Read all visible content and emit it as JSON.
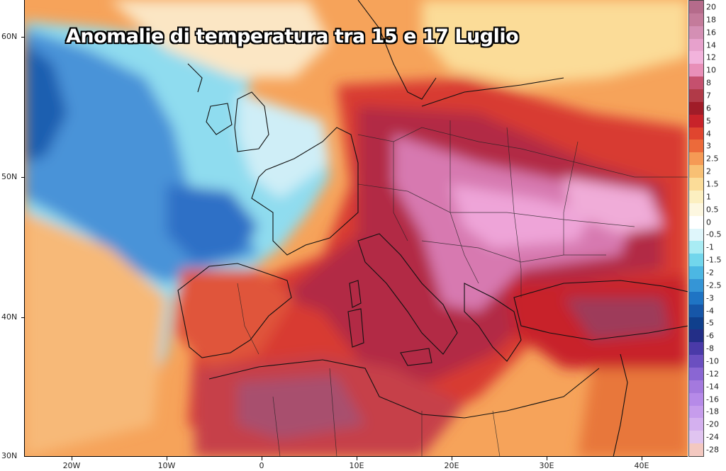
{
  "title": "Anomalie di temperatura tra 15 e 17 Luglio",
  "y_axis_labels": [
    "60N",
    "50N",
    "40N",
    "30N"
  ],
  "x_axis_labels": [
    "20W",
    "10W",
    "0",
    "10E",
    "20E",
    "30E",
    "40E"
  ],
  "legend": {
    "labels": [
      "20",
      "18",
      "16",
      "14",
      "12",
      "10",
      "8",
      "7",
      "6",
      "5",
      "4",
      "3",
      "2.5",
      "2",
      "1.5",
      "1",
      "0.5",
      "0",
      "-0.5",
      "-1",
      "-1.5",
      "-2",
      "-2.5",
      "-3",
      "-4",
      "-5",
      "-6",
      "-8",
      "-10",
      "-12",
      "-14",
      "-16",
      "-18",
      "-20",
      "-24",
      "-28"
    ],
    "colors": [
      "#b56b8b",
      "#c47b9b",
      "#d48fb4",
      "#e7a1cc",
      "#f2b3dc",
      "#e88fb8",
      "#c5506e",
      "#b13a48",
      "#a01c28",
      "#c8232a",
      "#e0452f",
      "#ec6a3a",
      "#f59a55",
      "#f8c074",
      "#fbdc98",
      "#fcefc0",
      "#fdf7e0",
      "#ffffff",
      "#dff6fb",
      "#a9ecf4",
      "#72d6ec",
      "#4cb7e3",
      "#3595d6",
      "#1f74c4",
      "#1656a8",
      "#0f3f8c",
      "#232e87",
      "#4a3aa8",
      "#6b4fc0",
      "#8a66d3",
      "#a479de",
      "#b68ae8",
      "#c69cec",
      "#d4b0ef",
      "#e0c4f0",
      "#f3c8c0"
    ]
  },
  "map": {
    "region": "Europe, North Africa and Middle East",
    "background_color": "#f7f3ec",
    "ocean_anomaly_color": "#4a8fd6",
    "heat_core_color": "#c0355a",
    "extreme_core_color": "#e29ad0"
  }
}
